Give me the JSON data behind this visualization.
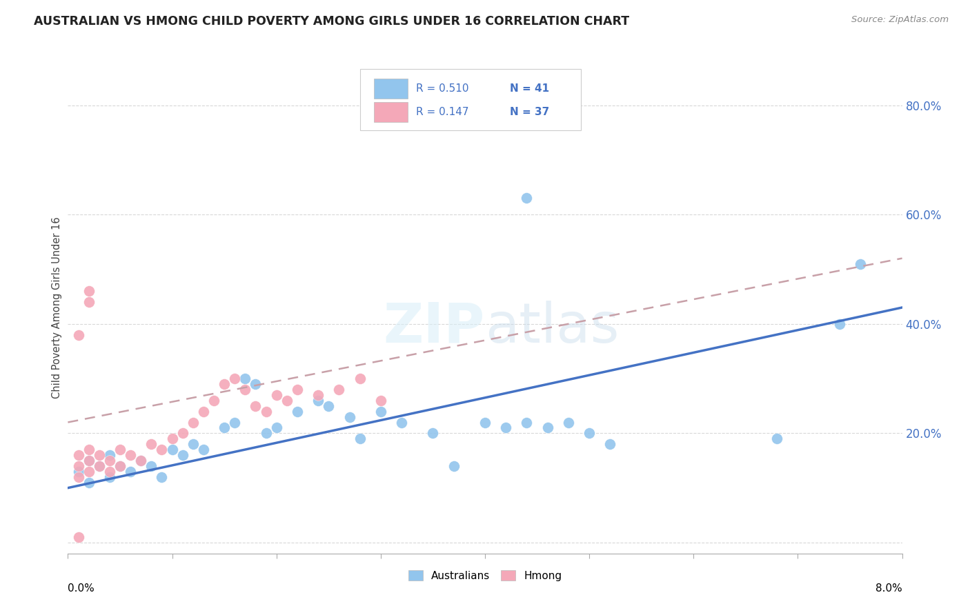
{
  "title": "AUSTRALIAN VS HMONG CHILD POVERTY AMONG GIRLS UNDER 16 CORRELATION CHART",
  "source": "Source: ZipAtlas.com",
  "ylabel": "Child Poverty Among Girls Under 16",
  "xlim": [
    0.0,
    0.08
  ],
  "ylim": [
    -0.02,
    0.88
  ],
  "r_australian": 0.51,
  "n_australian": 41,
  "r_hmong": 0.147,
  "n_hmong": 37,
  "color_australian": "#92C5ED",
  "color_hmong": "#F4A8B8",
  "color_blue_text": "#4472C4",
  "trend_blue": "#4472C4",
  "trend_pink": "#C8A0A8",
  "background": "#FFFFFF",
  "grid_color": "#D8D8D8",
  "aus_x": [
    0.001,
    0.002,
    0.002,
    0.003,
    0.004,
    0.004,
    0.005,
    0.006,
    0.007,
    0.008,
    0.009,
    0.01,
    0.011,
    0.012,
    0.013,
    0.015,
    0.016,
    0.017,
    0.018,
    0.019,
    0.02,
    0.022,
    0.024,
    0.025,
    0.027,
    0.028,
    0.03,
    0.032,
    0.035,
    0.037,
    0.04,
    0.042,
    0.044,
    0.046,
    0.048,
    0.05,
    0.052,
    0.044,
    0.068,
    0.074,
    0.076
  ],
  "aus_y": [
    0.13,
    0.11,
    0.15,
    0.14,
    0.12,
    0.16,
    0.14,
    0.13,
    0.15,
    0.14,
    0.12,
    0.17,
    0.16,
    0.18,
    0.17,
    0.21,
    0.22,
    0.3,
    0.29,
    0.2,
    0.21,
    0.24,
    0.26,
    0.25,
    0.23,
    0.19,
    0.24,
    0.22,
    0.2,
    0.14,
    0.22,
    0.21,
    0.22,
    0.21,
    0.22,
    0.2,
    0.18,
    0.63,
    0.19,
    0.4,
    0.51
  ],
  "hmong_x": [
    0.001,
    0.001,
    0.001,
    0.002,
    0.002,
    0.002,
    0.003,
    0.003,
    0.004,
    0.004,
    0.005,
    0.005,
    0.006,
    0.007,
    0.008,
    0.009,
    0.01,
    0.011,
    0.012,
    0.013,
    0.014,
    0.015,
    0.016,
    0.017,
    0.018,
    0.019,
    0.02,
    0.021,
    0.022,
    0.024,
    0.026,
    0.028,
    0.03,
    0.002,
    0.002,
    0.001,
    0.001
  ],
  "hmong_y": [
    0.12,
    0.14,
    0.16,
    0.13,
    0.15,
    0.17,
    0.14,
    0.16,
    0.13,
    0.15,
    0.14,
    0.17,
    0.16,
    0.15,
    0.18,
    0.17,
    0.19,
    0.2,
    0.22,
    0.24,
    0.26,
    0.29,
    0.3,
    0.28,
    0.25,
    0.24,
    0.27,
    0.26,
    0.28,
    0.27,
    0.28,
    0.3,
    0.26,
    0.44,
    0.46,
    0.38,
    0.01
  ],
  "trend_aus_x0": 0.0,
  "trend_aus_y0": 0.1,
  "trend_aus_x1": 0.08,
  "trend_aus_y1": 0.43,
  "trend_hmong_x0": 0.0,
  "trend_hmong_y0": 0.22,
  "trend_hmong_x1": 0.08,
  "trend_hmong_y1": 0.52,
  "yticks": [
    0.0,
    0.2,
    0.4,
    0.6,
    0.8
  ],
  "ytick_labels": [
    "",
    "20.0%",
    "40.0%",
    "60.0%",
    "80.0%"
  ]
}
